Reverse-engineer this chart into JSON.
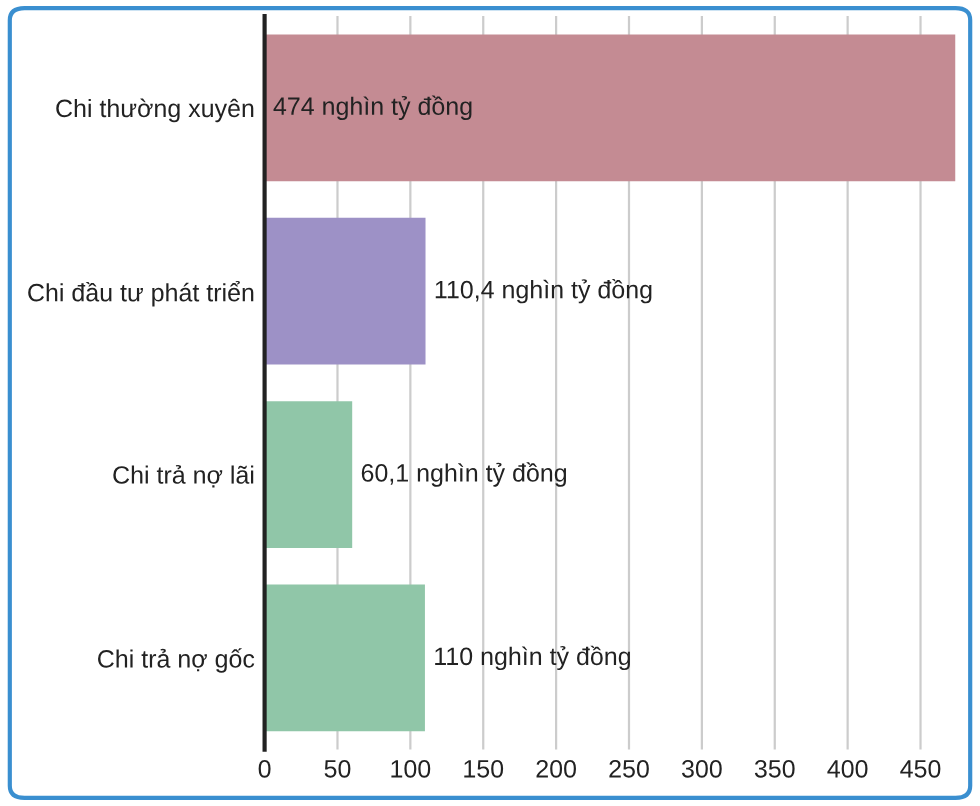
{
  "chart_data": {
    "type": "bar",
    "orientation": "horizontal",
    "categories": [
      "Chi thường xuyên",
      "Chi đầu tư phát triển",
      "Chi trả nợ lãi",
      "Chi trả nợ gốc"
    ],
    "values": [
      474,
      110.4,
      60.1,
      110
    ],
    "colors": [
      "#c48b93",
      "#9d91c6",
      "#90c6a8",
      "#90c6a8"
    ],
    "value_labels": [
      "474 nghìn tỷ đồng",
      "110,4 nghìn tỷ đồng",
      "60,1 nghìn tỷ đồng",
      "110 nghìn tỷ đồng"
    ],
    "xlim": [
      0,
      474
    ],
    "xticks": [
      0,
      50,
      100,
      150,
      200,
      250,
      300,
      350,
      400,
      450
    ],
    "grid": "x",
    "legend": false
  }
}
